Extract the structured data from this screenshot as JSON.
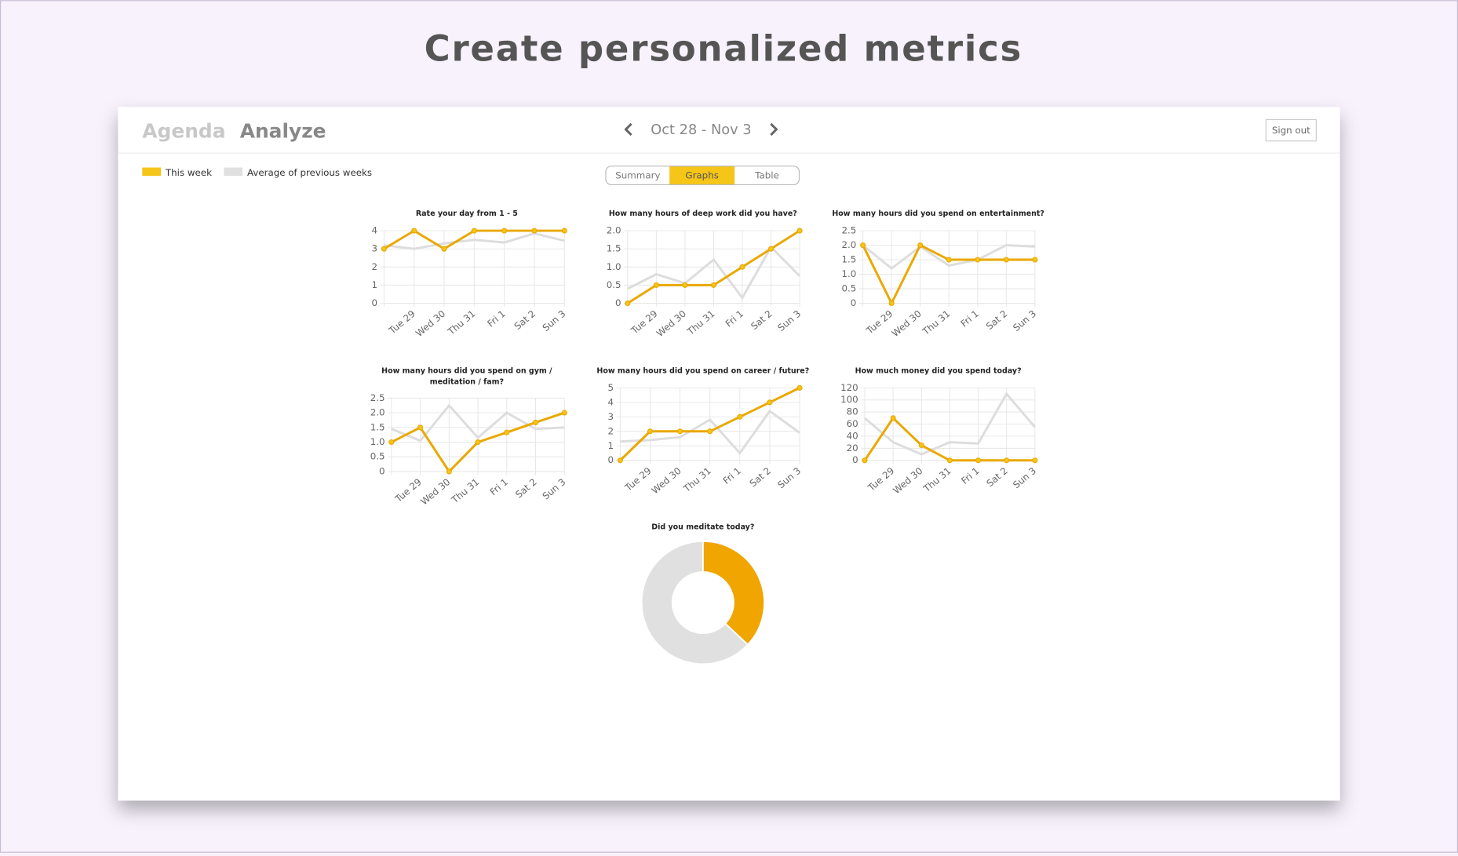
{
  "page_title": "Create personalized metrics",
  "nav": {
    "tabs": [
      "Agenda",
      "Analyze"
    ],
    "date_range": "Oct 28 - Nov 3",
    "sign_out": "Sign out"
  },
  "view_tabs": [
    "Summary",
    "Graphs",
    "Table"
  ],
  "legend": [
    {
      "name": "This week",
      "color": "#f5c518"
    },
    {
      "name": "Average of previous weeks",
      "color": "#e0e0e0"
    }
  ],
  "chart_data": [
    {
      "type": "line",
      "title": "Rate your day from 1 - 5",
      "categories": [
        null,
        "Tue 29",
        "Wed 30",
        "Thu 31",
        "Fri 1",
        "Sat 2",
        "Sun 3"
      ],
      "series": [
        {
          "color": "#dddddd",
          "values": [
            3.2,
            3.0,
            3.3,
            3.5,
            3.35,
            3.85,
            3.45
          ]
        },
        {
          "color": "#eaa800",
          "values": [
            3,
            4,
            3,
            4,
            4,
            4,
            4
          ]
        }
      ],
      "ylim": [
        0,
        4
      ],
      "yticks": [
        0,
        1,
        2,
        3,
        4
      ],
      "grid": true
    },
    {
      "type": "line",
      "title": "How many hours of deep work did you have?",
      "categories": [
        null,
        "Tue 29",
        "Wed 30",
        "Thu 31",
        "Fri 1",
        "Sat 2",
        "Sun 3"
      ],
      "series": [
        {
          "color": "#dddddd",
          "values": [
            0.4,
            0.8,
            0.55,
            1.2,
            0.15,
            1.55,
            0.75
          ]
        },
        {
          "color": "#eaa800",
          "values": [
            0,
            0.5,
            0.5,
            0.5,
            1.0,
            1.5,
            2.0
          ]
        }
      ],
      "ylim": [
        0,
        2
      ],
      "yticks": [
        0,
        0.5,
        {
          "value": 1,
          "label": "1.0"
        },
        1.5,
        {
          "value": 2,
          "label": "2.0"
        }
      ],
      "grid": true
    },
    {
      "type": "line",
      "title": "How many hours did you spend on entertainment?",
      "categories": [
        null,
        "Tue 29",
        "Wed 30",
        "Thu 31",
        "Fri 1",
        "Sat 2",
        "Sun 3"
      ],
      "series": [
        {
          "color": "#dddddd",
          "values": [
            2.0,
            1.2,
            1.95,
            1.3,
            1.5,
            2.0,
            1.95
          ]
        },
        {
          "color": "#eaa800",
          "values": [
            2,
            0,
            2,
            1.5,
            1.5,
            1.5,
            1.5
          ]
        }
      ],
      "ylim": [
        0,
        2.5
      ],
      "yticks": [
        0,
        0.5,
        {
          "value": 1,
          "label": "1.0"
        },
        1.5,
        {
          "value": 2,
          "label": "2.0"
        },
        2.5
      ],
      "grid": true
    },
    {
      "type": "line",
      "title": "How many hours did you spend on gym / meditation / fam?",
      "categories": [
        null,
        "Tue 29",
        "Wed 30",
        "Thu 31",
        "Fri 1",
        "Sat 2",
        "Sun 3"
      ],
      "series": [
        {
          "color": "#dddddd",
          "values": [
            1.45,
            1.05,
            2.25,
            1.15,
            2.0,
            1.45,
            1.5
          ]
        },
        {
          "color": "#eaa800",
          "values": [
            1,
            1.5,
            0,
            1,
            1.33,
            1.67,
            2
          ]
        }
      ],
      "ylim": [
        0,
        2.5
      ],
      "yticks": [
        0,
        0.5,
        {
          "value": 1,
          "label": "1.0"
        },
        1.5,
        {
          "value": 2,
          "label": "2.0"
        },
        2.5
      ],
      "grid": true
    },
    {
      "type": "line",
      "title": "How many hours did you spend on career / future?",
      "categories": [
        null,
        "Tue 29",
        "Wed 30",
        "Thu 31",
        "Fri 1",
        "Sat 2",
        "Sun 3"
      ],
      "series": [
        {
          "color": "#dddddd",
          "values": [
            1.3,
            1.4,
            1.6,
            2.8,
            0.5,
            3.4,
            1.9
          ]
        },
        {
          "color": "#eaa800",
          "values": [
            0,
            2,
            2,
            2,
            3,
            4,
            5
          ]
        }
      ],
      "ylim": [
        0,
        5
      ],
      "yticks": [
        0,
        1,
        2,
        3,
        4,
        5
      ],
      "grid": true
    },
    {
      "type": "line",
      "title": "How much money did you spend today?",
      "categories": [
        null,
        "Tue 29",
        "Wed 30",
        "Thu 31",
        "Fri 1",
        "Sat 2",
        "Sun 3"
      ],
      "series": [
        {
          "color": "#dddddd",
          "values": [
            70,
            30,
            10,
            30,
            28,
            110,
            55
          ]
        },
        {
          "color": "#eaa800",
          "values": [
            0,
            70,
            25,
            0,
            0,
            0,
            0
          ]
        }
      ],
      "ylim": [
        0,
        120
      ],
      "yticks": [
        0,
        20,
        40,
        60,
        80,
        100,
        120
      ],
      "grid": true
    },
    {
      "type": "pie",
      "title": "Did you meditate today?",
      "donut": true,
      "values": [
        37,
        63
      ],
      "colors": [
        "#f0a500",
        "#e0e0e0"
      ]
    }
  ]
}
